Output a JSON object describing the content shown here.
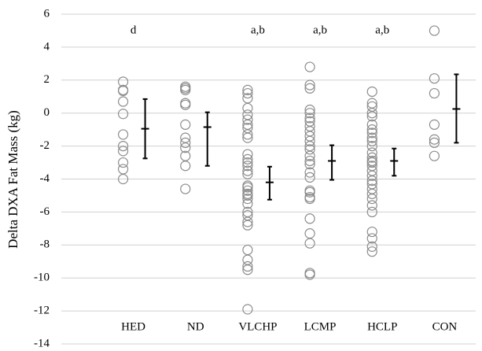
{
  "chart_data": {
    "type": "dotplot",
    "ylabel": "Delta DXA Fat Mass (kg)",
    "categories": [
      "HED",
      "ND",
      "VLCHP",
      "LCMP",
      "HCLP",
      "CON"
    ],
    "annotations": [
      "d",
      null,
      "a,b",
      "a,b",
      "a,b",
      null
    ],
    "points": [
      [
        1.9,
        1.4,
        1.35,
        0.7,
        -0.05,
        -1.3,
        -2.0,
        -2.3,
        -3.0,
        -3.4,
        -4.0
      ],
      [
        1.6,
        1.5,
        1.4,
        0.6,
        0.5,
        -0.7,
        -1.5,
        -1.8,
        -2.1,
        -2.6,
        -3.2,
        -4.6
      ],
      [
        1.4,
        1.2,
        0.9,
        0.3,
        -0.1,
        -0.4,
        -0.7,
        -0.9,
        -1.3,
        -1.5,
        -2.5,
        -2.8,
        -3.0,
        -3.2,
        -3.5,
        -3.7,
        -4.4,
        -4.5,
        -4.7,
        -4.9,
        -5.0,
        -5.2,
        -5.5,
        -6.0,
        -6.2,
        -6.6,
        -6.8,
        -8.3,
        -8.9,
        -9.3,
        -9.5,
        -11.9
      ],
      [
        2.8,
        1.7,
        1.5,
        0.2,
        0.0,
        -0.3,
        -0.5,
        -0.8,
        -1.1,
        -1.4,
        -1.7,
        -2.0,
        -2.2,
        -2.6,
        -2.9,
        -3.1,
        -3.6,
        -3.9,
        -4.7,
        -4.8,
        -5.1,
        -5.2,
        -6.4,
        -7.3,
        -7.9,
        -9.7,
        -9.8
      ],
      [
        1.3,
        0.6,
        0.4,
        0.0,
        -0.2,
        -0.7,
        -1.0,
        -1.2,
        -1.5,
        -1.7,
        -2.0,
        -2.4,
        -2.7,
        -2.9,
        -3.0,
        -3.2,
        -3.5,
        -3.8,
        -4.1,
        -4.3,
        -4.6,
        -4.9,
        -5.2,
        -5.6,
        -6.0,
        -7.2,
        -7.6,
        -8.1,
        -8.4
      ],
      [
        5.0,
        2.1,
        1.2,
        -0.7,
        -1.6,
        -1.8,
        -2.6
      ]
    ],
    "means": [
      -0.95,
      -0.85,
      -4.2,
      -2.9,
      -2.9,
      0.25
    ],
    "upper": [
      0.85,
      0.05,
      -3.25,
      -1.95,
      -2.15,
      2.35
    ],
    "lower": [
      -2.75,
      -3.2,
      -5.25,
      -4.05,
      -3.8,
      -1.8
    ],
    "point_color": "#8c8c8c",
    "bar_color": "#000000",
    "ylim": [
      -14,
      6
    ],
    "yticks": [
      -14,
      -12,
      -10,
      -8,
      -6,
      -4,
      -2,
      0,
      2,
      4,
      6
    ],
    "grid": true
  }
}
